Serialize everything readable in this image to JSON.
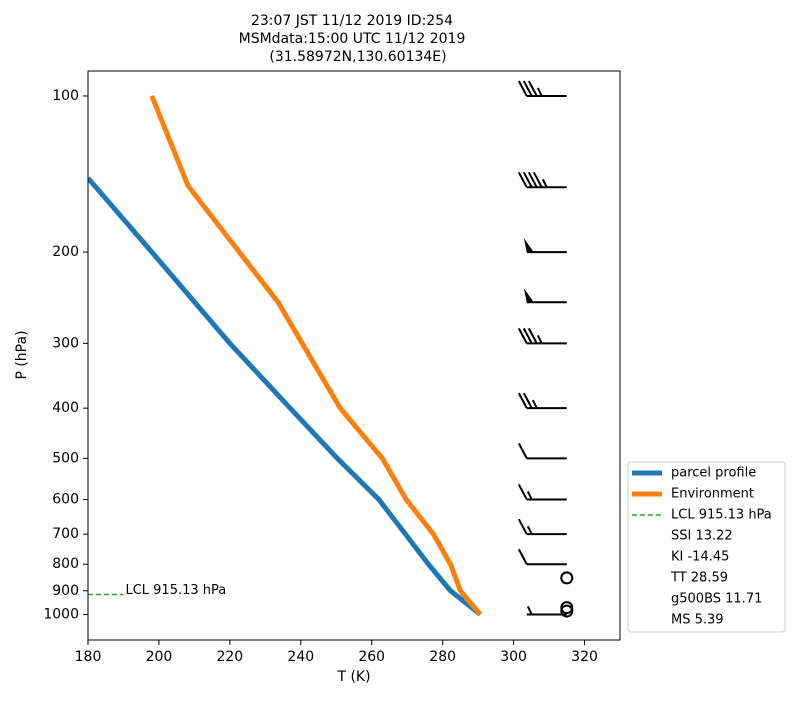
{
  "chart_data": {
    "type": "line",
    "title": [
      "23:07 JST 11/12 2019  ID:254",
      "MSMdata:15:00 UTC 11/12 2019",
      "(31.58972N,130.60134E)"
    ],
    "xlabel": "T (K)",
    "ylabel": "P (hPa)",
    "xlim": [
      180,
      330
    ],
    "xticks": [
      180,
      200,
      220,
      240,
      260,
      280,
      300,
      320
    ],
    "ylim": [
      1120,
      89.5
    ],
    "yscale": "log",
    "yticks": [
      100,
      200,
      300,
      400,
      500,
      600,
      700,
      800,
      900,
      1000
    ],
    "series": [
      {
        "name": "parcel profile",
        "color": "#1f77b4",
        "temperature": [
          180,
          198,
          220,
          237,
          250.3,
          262,
          269.5,
          276,
          282.2,
          290.6
        ],
        "pressure": [
          144,
          200,
          300,
          400,
          500,
          600,
          700,
          800,
          900,
          1000
        ]
      },
      {
        "name": "Environment",
        "color": "#ff7f0e",
        "temperature": [
          198,
          208.2,
          233.6,
          251.1,
          263,
          269.7,
          277.4,
          282.2,
          285,
          290.6
        ],
        "pressure": [
          100,
          149,
          250,
          400,
          500,
          600,
          700,
          800,
          900,
          1000
        ]
      },
      {
        "name": "LCL 915.13 hPa",
        "color": "#2ca02c",
        "dashed": true,
        "temperature": [
          180,
          190
        ],
        "pressure": [
          915.13,
          915.13
        ]
      }
    ],
    "annotation": {
      "text": "LCL 915.13 hPa",
      "x": 190,
      "y": 915.13
    },
    "legend_notes": [
      "SSI 13.22",
      "KI -14.45",
      "TT 28.59",
      "g500BS 11.71",
      "MS 5.39"
    ],
    "barbs": {
      "temperature": 315,
      "pressure": [
        100,
        150,
        200,
        250,
        300,
        400,
        500,
        600,
        700,
        800,
        850,
        970,
        985,
        1000
      ],
      "speed": [
        35,
        45,
        50,
        50,
        35,
        25,
        10,
        15,
        15,
        10,
        0,
        0,
        0,
        5
      ]
    }
  }
}
